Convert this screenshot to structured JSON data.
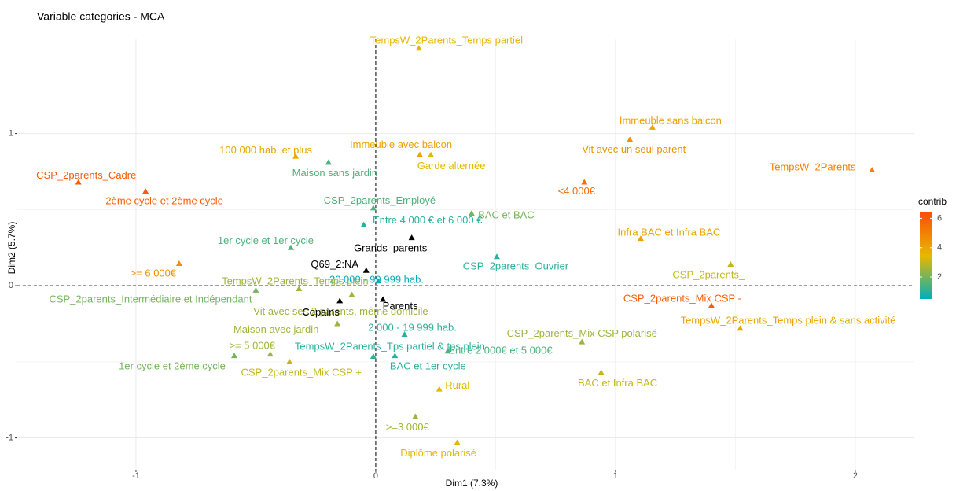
{
  "chart_data": {
    "type": "scatter",
    "title": "Variable categories - MCA",
    "x_label": "Dim1 (7.3%)",
    "y_label": "Dim2 (5.7%)",
    "xlim": [
      -1.495,
      2.243
    ],
    "ylim": [
      -1.209,
      1.618
    ],
    "xticks": [
      -1,
      0,
      1,
      2
    ],
    "yticks": [
      -1,
      0,
      1
    ],
    "grid": true,
    "active": {
      "labels": [
        "TempsW_2Parents_Temps partiel",
        "Immeuble sans balcon",
        "Vit avec un seul parent",
        "100 000 hab. et plus",
        "Immeuble avec balcon",
        "Garde alternée",
        "Maison sans jardin",
        "CSP_2parents_Cadre",
        "TempsW_2Parents_",
        "<4 000€",
        "2ème cycle et 2ème cycle",
        "CSP_2parents_Employé",
        "BAC et BAC",
        "Entre 4 000 € et 6 000 €",
        "Infra BAC et Infra BAC",
        "1er cycle et 1er cycle",
        "CSP_2parents_Ouvrier",
        "CSP_2parents_",
        "20 000 - 99 999 hab.",
        ">= 6 000€",
        "TempsW_2Parents_Temps plein",
        "CSP_2parents_Intermédiaire et Indépendant",
        "CSP_2parents_Mix CSP -",
        "Vit avec ses 2 parents, même domicile",
        "TempsW_2Parents_Temps plein & sans activité",
        "Maison avec jardin",
        "2 000 - 19 999 hab.",
        "CSP_2parents_Mix CSP polarisé",
        ">= 5 000€",
        "TempsW_2Parents_Tps partiel & tps plein",
        "Entre 2 000€ et 5 000€",
        "1er cycle et 2ème cycle",
        "CSP_2parents_Mix CSP +",
        "BAC et 1er cycle",
        "BAC et Infra BAC",
        "Rural",
        ">=3 000€",
        "Diplôme polarisé"
      ],
      "x": [
        0.18,
        1.154,
        1.06,
        -0.334,
        0.184,
        0.23,
        -0.197,
        -1.24,
        2.07,
        0.87,
        -0.96,
        -0.01,
        0.4,
        -0.05,
        1.105,
        -0.354,
        0.505,
        1.48,
        0.01,
        -0.82,
        -0.32,
        -0.5,
        1.4,
        -0.1,
        1.52,
        -0.16,
        0.12,
        0.86,
        -0.44,
        -0.01,
        0.3,
        -0.59,
        -0.36,
        0.08,
        0.94,
        0.265,
        0.165,
        0.34
      ],
      "y": [
        1.56,
        1.04,
        0.96,
        0.85,
        0.86,
        0.86,
        0.81,
        0.68,
        0.76,
        0.68,
        0.62,
        0.51,
        0.475,
        0.4,
        0.31,
        0.25,
        0.19,
        0.14,
        0.03,
        0.145,
        -0.02,
        -0.03,
        -0.13,
        -0.06,
        -0.28,
        -0.25,
        -0.32,
        -0.37,
        -0.45,
        -0.465,
        -0.43,
        -0.46,
        -0.5,
        -0.46,
        -0.57,
        -0.68,
        -0.86,
        -1.03
      ],
      "contrib": [
        3.5,
        4,
        4.5,
        4,
        4,
        3.5,
        1.5,
        6,
        5,
        5.5,
        6,
        1.5,
        2,
        1,
        4,
        1.5,
        1,
        3,
        0.5,
        4.5,
        2.5,
        2,
        6,
        2.5,
        4,
        2.5,
        1,
        2.5,
        2.5,
        1,
        1.5,
        2,
        3,
        1,
        3,
        3.5,
        2.5,
        3.5
      ]
    },
    "supplementary": {
      "labels": [
        "Grands_parents",
        "Q69_2:NA",
        "Parents",
        "Copains"
      ],
      "x": [
        0.15,
        -0.04,
        0.03,
        -0.15
      ],
      "y": [
        0.315,
        0.1,
        -0.09,
        -0.1
      ],
      "color": "#000000"
    },
    "color_scale": {
      "title": "contrib",
      "lim": [
        0.5,
        6.4
      ],
      "ticks": [
        2,
        4,
        6
      ],
      "colors": [
        "#00AFBB",
        "#E7B800",
        "#FC4E07"
      ]
    }
  }
}
